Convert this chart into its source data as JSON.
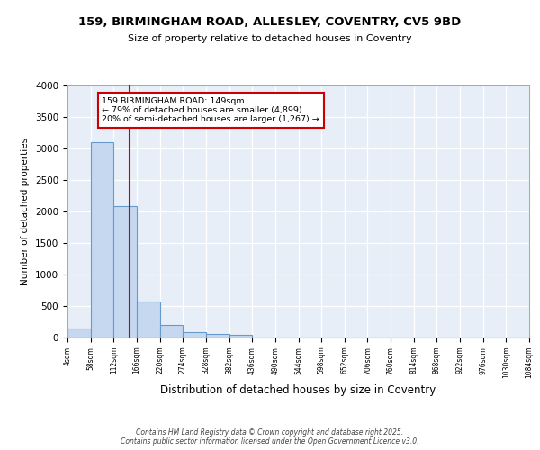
{
  "title1": "159, BIRMINGHAM ROAD, ALLESLEY, COVENTRY, CV5 9BD",
  "title2": "Size of property relative to detached houses in Coventry",
  "xlabel": "Distribution of detached houses by size in Coventry",
  "ylabel": "Number of detached properties",
  "bar_edges": [
    4,
    58,
    112,
    166,
    220,
    274,
    328,
    382,
    436,
    490,
    544,
    598,
    652,
    706,
    760,
    814,
    868,
    922,
    976,
    1030,
    1084
  ],
  "bar_heights": [
    140,
    3100,
    2090,
    570,
    200,
    80,
    60,
    50,
    0,
    0,
    0,
    0,
    0,
    0,
    0,
    0,
    0,
    0,
    0,
    0
  ],
  "property_size": 149,
  "property_line_color": "#cc0000",
  "bar_fill_color": "#c5d8f0",
  "bar_edge_color": "#6699cc",
  "annotation_text": "159 BIRMINGHAM ROAD: 149sqm\n← 79% of detached houses are smaller (4,899)\n20% of semi-detached houses are larger (1,267) →",
  "annotation_box_color": "#cc0000",
  "background_color": "#e8eef8",
  "footer_text": "Contains HM Land Registry data © Crown copyright and database right 2025.\nContains public sector information licensed under the Open Government Licence v3.0.",
  "ylim": [
    0,
    4000
  ],
  "yticks": [
    0,
    500,
    1000,
    1500,
    2000,
    2500,
    3000,
    3500,
    4000
  ],
  "fig_width": 6.0,
  "fig_height": 5.0,
  "fig_dpi": 100
}
